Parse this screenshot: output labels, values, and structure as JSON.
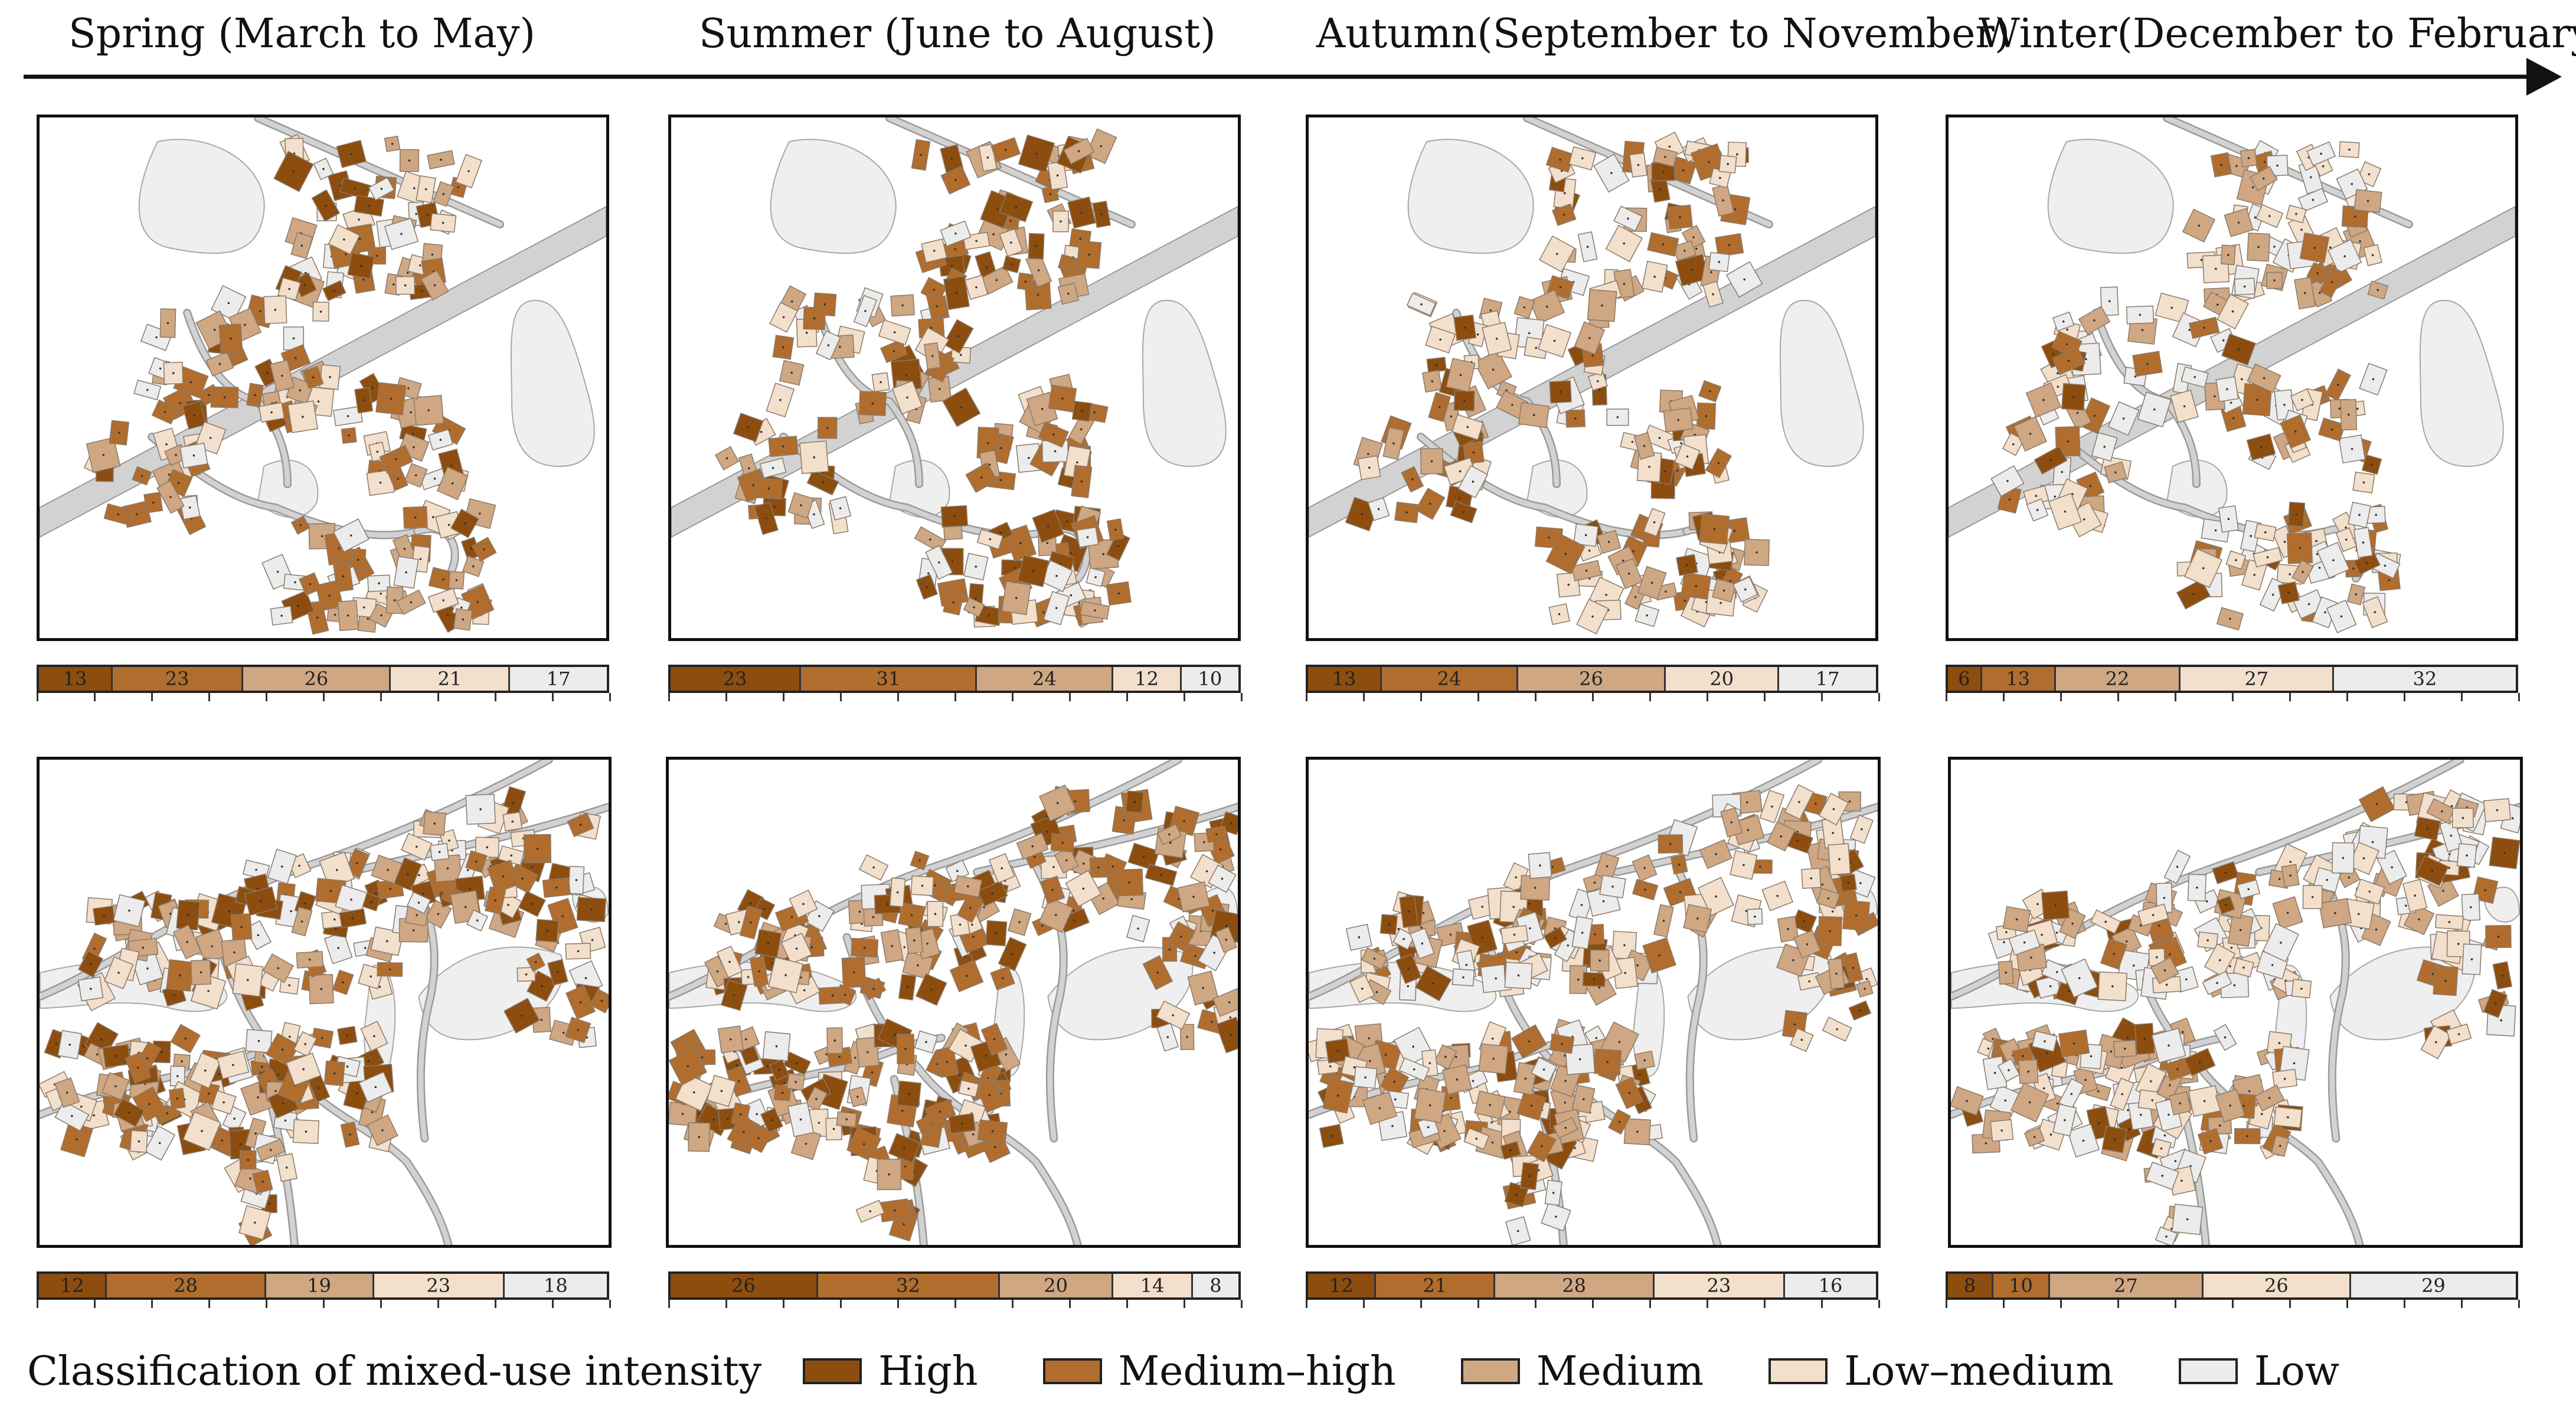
{
  "seasons": [
    {
      "title": "Spring (March to May)"
    },
    {
      "title": "Summer (June to August)"
    },
    {
      "title": "Autumn(September to November)"
    },
    {
      "title": "Winter(December to February)"
    }
  ],
  "colors": {
    "high": "#8c4d0f",
    "medium_high": "#b06d2e",
    "medium": "#cfa783",
    "low_medium": "#f2dfcc",
    "low": "#ececec",
    "road": "#d2d2d2",
    "water": "#efefef"
  },
  "chart_data": [
    {
      "type": "bar",
      "stacked": true,
      "title": "Spring (March to May)",
      "row": "village-1",
      "categories": [
        "High",
        "Medium-high",
        "Medium",
        "Low-medium",
        "Low"
      ],
      "values": [
        13,
        23,
        26,
        21,
        17
      ]
    },
    {
      "type": "bar",
      "stacked": true,
      "title": "Summer (June to August)",
      "row": "village-1",
      "categories": [
        "High",
        "Medium-high",
        "Medium",
        "Low-medium",
        "Low"
      ],
      "values": [
        23,
        31,
        24,
        12,
        10
      ]
    },
    {
      "type": "bar",
      "stacked": true,
      "title": "Autumn(September to November)",
      "row": "village-1",
      "categories": [
        "High",
        "Medium-high",
        "Medium",
        "Low-medium",
        "Low"
      ],
      "values": [
        13,
        24,
        26,
        20,
        17
      ]
    },
    {
      "type": "bar",
      "stacked": true,
      "title": "Winter(December to February)",
      "row": "village-1",
      "categories": [
        "High",
        "Medium-high",
        "Medium",
        "Low-medium",
        "Low"
      ],
      "values": [
        6,
        13,
        22,
        27,
        32
      ]
    },
    {
      "type": "bar",
      "stacked": true,
      "title": "Spring (March to May)",
      "row": "village-2",
      "categories": [
        "High",
        "Medium-high",
        "Medium",
        "Low-medium",
        "Low"
      ],
      "values": [
        12,
        28,
        19,
        23,
        18
      ]
    },
    {
      "type": "bar",
      "stacked": true,
      "title": "Summer (June to August)",
      "row": "village-2",
      "categories": [
        "High",
        "Medium-high",
        "Medium",
        "Low-medium",
        "Low"
      ],
      "values": [
        26,
        32,
        20,
        14,
        8
      ]
    },
    {
      "type": "bar",
      "stacked": true,
      "title": "Autumn(September to November)",
      "row": "village-2",
      "categories": [
        "High",
        "Medium-high",
        "Medium",
        "Low-medium",
        "Low"
      ],
      "values": [
        12,
        21,
        28,
        23,
        16
      ]
    },
    {
      "type": "bar",
      "stacked": true,
      "title": "Winter(December to February)",
      "row": "village-2",
      "categories": [
        "High",
        "Medium-high",
        "Medium",
        "Low-medium",
        "Low"
      ],
      "values": [
        8,
        10,
        27,
        26,
        29
      ]
    }
  ],
  "legend": {
    "title": "Classification of mixed-use intensity",
    "items": [
      {
        "label": "High",
        "key": "high"
      },
      {
        "label": "Medium–high",
        "key": "medium_high"
      },
      {
        "label": "Medium",
        "key": "medium"
      },
      {
        "label": "Low–medium",
        "key": "low_medium"
      },
      {
        "label": "Low",
        "key": "low"
      }
    ]
  }
}
